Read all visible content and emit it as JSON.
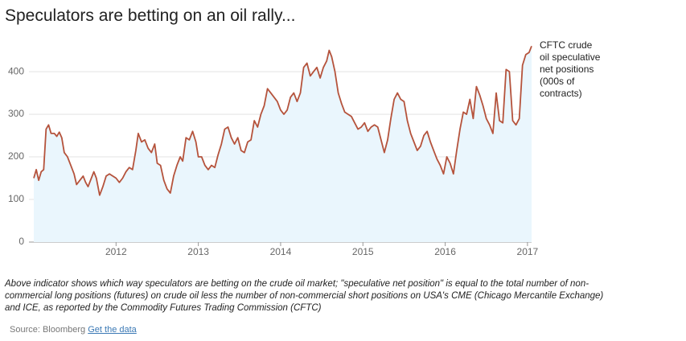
{
  "chart_data": {
    "type": "line",
    "title": "Speculators are betting on an oil rally...",
    "caption": "Above indicator shows which way speculators are betting on the crude oil market; \"speculative net position\" is equal to the total number of non-commercial long positions (futures) on crude oil less the number of non-commercial short positions on USA's CME (Chicago Mercantile Exchange) and ICE, as reported by the Commodity Futures Trading Commission (CFTC)",
    "source": "Source: Bloomberg",
    "source_link": "Get the data",
    "xlim": [
      2011,
      2017.05
    ],
    "xticks": [
      2012,
      2013,
      2014,
      2015,
      2016,
      2017
    ],
    "ylim": [
      0,
      470
    ],
    "yticks": [
      0,
      100,
      200,
      300,
      400
    ],
    "grid": true,
    "x": [
      2011.0,
      2011.03,
      2011.06,
      2011.09,
      2011.12,
      2011.15,
      2011.18,
      2011.21,
      2011.25,
      2011.28,
      2011.31,
      2011.34,
      2011.37,
      2011.41,
      2011.45,
      2011.49,
      2011.52,
      2011.56,
      2011.6,
      2011.63,
      2011.66,
      2011.7,
      2011.73,
      2011.76,
      2011.8,
      2011.84,
      2011.88,
      2011.92,
      2011.96,
      2012.0,
      2012.04,
      2012.08,
      2012.12,
      2012.16,
      2012.2,
      2012.24,
      2012.27,
      2012.31,
      2012.35,
      2012.39,
      2012.43,
      2012.47,
      2012.5,
      2012.54,
      2012.58,
      2012.62,
      2012.66,
      2012.7,
      2012.74,
      2012.78,
      2012.81,
      2012.85,
      2012.89,
      2012.93,
      2012.97,
      2013.0,
      2013.04,
      2013.08,
      2013.12,
      2013.16,
      2013.2,
      2013.24,
      2013.28,
      2013.32,
      2013.36,
      2013.4,
      2013.44,
      2013.48,
      2013.52,
      2013.56,
      2013.6,
      2013.64,
      2013.68,
      2013.72,
      2013.76,
      2013.8,
      2013.84,
      2013.88,
      2013.92,
      2013.96,
      2014.0,
      2014.04,
      2014.08,
      2014.12,
      2014.16,
      2014.2,
      2014.24,
      2014.28,
      2014.32,
      2014.36,
      2014.4,
      2014.44,
      2014.48,
      2014.52,
      2014.56,
      2014.59,
      2014.62,
      2014.66,
      2014.7,
      2014.74,
      2014.78,
      2014.82,
      2014.86,
      2014.9,
      2014.94,
      2014.98,
      2015.02,
      2015.06,
      2015.1,
      2015.14,
      2015.18,
      2015.22,
      2015.26,
      2015.3,
      2015.34,
      2015.38,
      2015.42,
      2015.46,
      2015.5,
      2015.54,
      2015.58,
      2015.62,
      2015.66,
      2015.7,
      2015.74,
      2015.78,
      2015.82,
      2015.86,
      2015.9,
      2015.94,
      2015.98,
      2016.02,
      2016.06,
      2016.1,
      2016.14,
      2016.18,
      2016.22,
      2016.26,
      2016.3,
      2016.34,
      2016.38,
      2016.42,
      2016.46,
      2016.5,
      2016.54,
      2016.58,
      2016.62,
      2016.66,
      2016.7,
      2016.74,
      2016.78,
      2016.82,
      2016.86,
      2016.9,
      2016.94,
      2016.98,
      2017.02,
      2017.05
    ],
    "series": [
      {
        "name": "CFTC crude oil speculative net positions (000s of contracts)",
        "color": "#b5533c",
        "fill": "#eaf6fd",
        "values": [
          150,
          170,
          145,
          165,
          170,
          265,
          275,
          255,
          255,
          248,
          258,
          245,
          210,
          200,
          180,
          160,
          135,
          145,
          155,
          140,
          130,
          150,
          165,
          150,
          110,
          130,
          155,
          160,
          155,
          150,
          140,
          150,
          165,
          175,
          170,
          215,
          255,
          235,
          240,
          220,
          210,
          230,
          185,
          180,
          145,
          125,
          115,
          155,
          180,
          200,
          190,
          245,
          240,
          260,
          235,
          200,
          200,
          180,
          170,
          180,
          175,
          205,
          230,
          265,
          270,
          245,
          230,
          245,
          215,
          210,
          235,
          240,
          285,
          270,
          300,
          320,
          360,
          350,
          340,
          330,
          310,
          300,
          310,
          340,
          350,
          330,
          350,
          410,
          420,
          390,
          400,
          410,
          385,
          410,
          425,
          450,
          435,
          400,
          350,
          325,
          305,
          300,
          295,
          280,
          265,
          270,
          280,
          260,
          270,
          275,
          270,
          240,
          210,
          240,
          290,
          335,
          350,
          335,
          330,
          285,
          255,
          235,
          215,
          225,
          250,
          260,
          235,
          215,
          195,
          180,
          160,
          200,
          185,
          160,
          215,
          265,
          305,
          300,
          335,
          290,
          365,
          345,
          320,
          290,
          275,
          255,
          350,
          285,
          280,
          405,
          400,
          285,
          275,
          290,
          415,
          440,
          445,
          460
        ]
      }
    ]
  }
}
